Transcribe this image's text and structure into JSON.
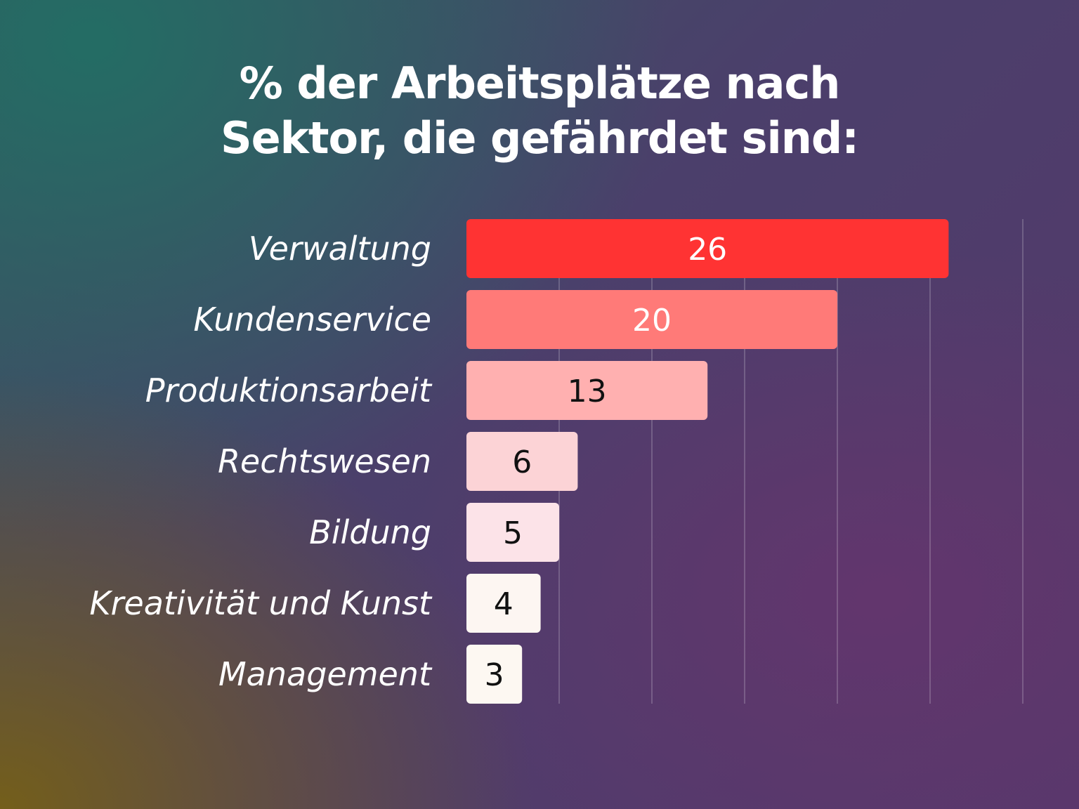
{
  "chart_data": {
    "type": "bar",
    "orientation": "horizontal",
    "title_lines": [
      "% der Arbeitsplätze nach",
      "Sektor, die gefährdet sind:"
    ],
    "categories": [
      "Verwaltung",
      "Kundenservice",
      "Produktionsarbeit",
      "Rechtswesen",
      "Bildung",
      "Kreativität und Kunst",
      "Management"
    ],
    "values": [
      26,
      20,
      13,
      6,
      5,
      4,
      3
    ],
    "bar_colors": [
      "#ff3333",
      "#ff7a78",
      "#ffb0b0",
      "#fcd3d6",
      "#fce3e8",
      "#fdf6f2",
      "#fdf8f2"
    ],
    "value_label_colors": [
      "#ffffff",
      "#ffffff",
      "#111111",
      "#111111",
      "#111111",
      "#111111",
      "#111111"
    ],
    "xlim": [
      0,
      30
    ],
    "grid": true,
    "xlabel": "",
    "ylabel": ""
  }
}
